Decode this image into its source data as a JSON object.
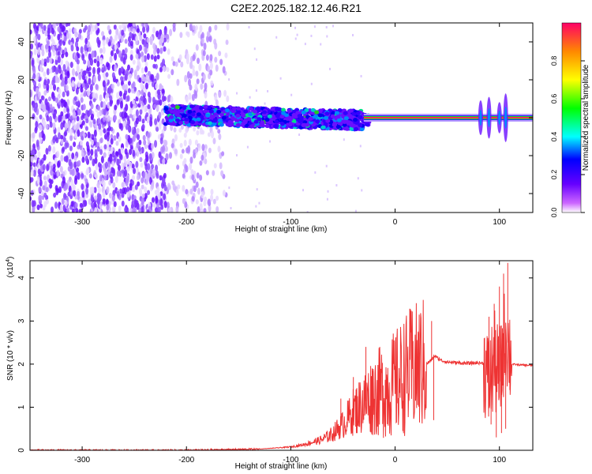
{
  "title": "C2E2.2025.182.12.46.R21",
  "chart_data": [
    {
      "type": "heatmap",
      "xlabel": "Height of straight line (km)",
      "ylabel": "Frequency (Hz)",
      "xlim": [
        -350,
        132
      ],
      "ylim": [
        -50,
        50
      ],
      "x_ticks": [
        -300,
        -200,
        -100,
        0,
        100
      ],
      "y_ticks": [
        -40,
        -20,
        0,
        20,
        40
      ],
      "grid": false,
      "colorbar": {
        "label": "Normalized spectral amplitude",
        "range": [
          0,
          1
        ],
        "ticks": [
          0.0,
          0.2,
          0.4,
          0.6,
          0.8
        ]
      }
    },
    {
      "type": "line",
      "xlabel": "Height of straight line (km)",
      "ylabel": "SNR (10 * v/v)",
      "y_multiplier": "(x10",
      "y_multiplier_exp": "4",
      "y_multiplier_close": ")",
      "xlim": [
        -350,
        132
      ],
      "ylim": [
        0,
        4.4
      ],
      "x_ticks": [
        -300,
        -200,
        -100,
        0,
        100
      ],
      "y_ticks": [
        0,
        1,
        2,
        3,
        4
      ],
      "color": "#ee3333",
      "series": [
        {
          "points": [
            [
              -350,
              0.0
            ],
            [
              -300,
              0.0
            ],
            [
              -250,
              0.0
            ],
            [
              -200,
              0.0
            ],
            [
              -170,
              0.01
            ],
            [
              -150,
              0.02
            ],
            [
              -130,
              0.03
            ],
            [
              -110,
              0.06
            ],
            [
              -100,
              0.08
            ],
            [
              -90,
              0.12
            ],
            [
              -80,
              0.18
            ],
            [
              -70,
              0.25
            ],
            [
              -60,
              0.38
            ],
            [
              -55,
              0.5
            ],
            [
              -50,
              0.6
            ],
            [
              -45,
              0.75
            ],
            [
              -40,
              0.9
            ],
            [
              -35,
              1.0
            ],
            [
              -30,
              1.1
            ],
            [
              -25,
              1.2
            ],
            [
              -20,
              1.3
            ],
            [
              -15,
              1.35
            ],
            [
              -10,
              1.4
            ],
            [
              -5,
              1.45
            ],
            [
              0,
              1.55
            ],
            [
              5,
              1.65
            ],
            [
              10,
              1.75
            ],
            [
              15,
              1.85
            ],
            [
              20,
              1.9
            ],
            [
              25,
              1.95
            ],
            [
              30,
              2.0
            ],
            [
              35,
              2.1
            ],
            [
              38,
              2.2
            ],
            [
              40,
              2.15
            ],
            [
              45,
              2.08
            ],
            [
              50,
              2.05
            ],
            [
              60,
              2.03
            ],
            [
              70,
              2.02
            ],
            [
              80,
              2.03
            ],
            [
              85,
              2.02
            ],
            [
              90,
              1.5
            ],
            [
              95,
              2.1
            ],
            [
              100,
              1.6
            ],
            [
              103,
              2.2
            ],
            [
              106,
              2.8
            ],
            [
              108,
              2.5
            ],
            [
              112,
              2.0
            ],
            [
              120,
              1.98
            ],
            [
              132,
              1.97
            ]
          ]
        }
      ],
      "spikes": [
        [
          -28,
          2.4
        ],
        [
          -22,
          1.9
        ],
        [
          -40,
          1.7
        ],
        [
          -52,
          1.2
        ],
        [
          35,
          3.0
        ],
        [
          37,
          0.7
        ],
        [
          90,
          3.1
        ],
        [
          92,
          0.6
        ],
        [
          95,
          3.4
        ],
        [
          97,
          0.3
        ],
        [
          100,
          3.8
        ],
        [
          102,
          0.4
        ],
        [
          104,
          4.1
        ],
        [
          106,
          0.5
        ],
        [
          108,
          4.35
        ],
        [
          110,
          1.4
        ]
      ]
    }
  ]
}
